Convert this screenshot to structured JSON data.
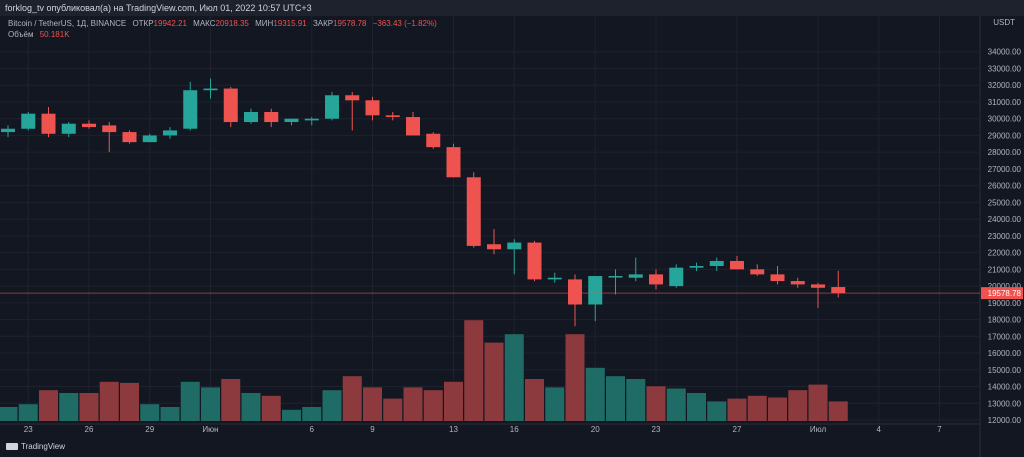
{
  "header": {
    "published": "forklog_tv опубликовал(а) на TradingView.com, Июл 01, 2022 10:57 UTC+3"
  },
  "legend": {
    "symbol": "Bitcoin / TetherUS, 1Д, BINANCE",
    "open_label": "ОТКР",
    "open": "19942.21",
    "high_label": "МАКС",
    "high": "20918.35",
    "low_label": "МИН",
    "low": "19315.91",
    "close_label": "ЗАКР",
    "close": "19578.78",
    "change": "−363.43 (−1.82%)",
    "volume_label": "Объём",
    "volume": "50.181K"
  },
  "price_axis": {
    "currency": "USDT",
    "last_price_label": "19578.78"
  },
  "footer": {
    "brand": "TradingView"
  },
  "colors": {
    "up": "#26a69a",
    "down": "#ef5350",
    "up_volume": "#1f6b66",
    "down_volume": "#8c3a3d",
    "background": "#131722",
    "grid": "#1e222d",
    "last_price_line": "#ef5350"
  },
  "chart_data": {
    "type": "candlestick",
    "title": "Bitcoin / TetherUS, 1Д, BINANCE",
    "ylabel": "USDT",
    "ylim": [
      12000,
      35000
    ],
    "y_ticks": [
      12000,
      13000,
      14000,
      15000,
      16000,
      17000,
      18000,
      19000,
      20000,
      21000,
      22000,
      23000,
      24000,
      25000,
      26000,
      27000,
      28000,
      29000,
      30000,
      31000,
      32000,
      33000,
      34000
    ],
    "x_ticks": [
      {
        "label": "23",
        "index": 1
      },
      {
        "label": "26",
        "index": 4
      },
      {
        "label": "29",
        "index": 7
      },
      {
        "label": "Июн",
        "index": 10
      },
      {
        "label": "6",
        "index": 15
      },
      {
        "label": "9",
        "index": 18
      },
      {
        "label": "13",
        "index": 22
      },
      {
        "label": "16",
        "index": 25
      },
      {
        "label": "20",
        "index": 29
      },
      {
        "label": "23",
        "index": 32
      },
      {
        "label": "27",
        "index": 36
      },
      {
        "label": "Июл",
        "index": 40
      },
      {
        "label": "4",
        "index": 43
      },
      {
        "label": "7",
        "index": 46
      }
    ],
    "candles": [
      {
        "o": 29200,
        "h": 29600,
        "l": 28900,
        "c": 29400,
        "v": 0.25
      },
      {
        "o": 29400,
        "h": 30400,
        "l": 29300,
        "c": 30300,
        "v": 0.3
      },
      {
        "o": 30300,
        "h": 30700,
        "l": 28900,
        "c": 29100,
        "v": 0.55
      },
      {
        "o": 29100,
        "h": 29800,
        "l": 28900,
        "c": 29700,
        "v": 0.5
      },
      {
        "o": 29700,
        "h": 29900,
        "l": 29400,
        "c": 29500,
        "v": 0.5
      },
      {
        "o": 29600,
        "h": 29800,
        "l": 28000,
        "c": 29200,
        "v": 0.7
      },
      {
        "o": 29200,
        "h": 29300,
        "l": 28500,
        "c": 28600,
        "v": 0.68
      },
      {
        "o": 28600,
        "h": 29100,
        "l": 28600,
        "c": 29000,
        "v": 0.3
      },
      {
        "o": 29000,
        "h": 29500,
        "l": 28800,
        "c": 29300,
        "v": 0.25
      },
      {
        "o": 29400,
        "h": 32200,
        "l": 29300,
        "c": 31700,
        "v": 0.7
      },
      {
        "o": 31700,
        "h": 32400,
        "l": 31200,
        "c": 31800,
        "v": 0.6
      },
      {
        "o": 31800,
        "h": 31900,
        "l": 29500,
        "c": 29800,
        "v": 0.75
      },
      {
        "o": 29800,
        "h": 30600,
        "l": 29700,
        "c": 30400,
        "v": 0.5
      },
      {
        "o": 30400,
        "h": 30600,
        "l": 29500,
        "c": 29800,
        "v": 0.45
      },
      {
        "o": 29800,
        "h": 30000,
        "l": 29600,
        "c": 30000,
        "v": 0.2
      },
      {
        "o": 29900,
        "h": 30100,
        "l": 29600,
        "c": 30000,
        "v": 0.25
      },
      {
        "o": 30000,
        "h": 31600,
        "l": 29900,
        "c": 31400,
        "v": 0.55
      },
      {
        "o": 31400,
        "h": 31600,
        "l": 29300,
        "c": 31100,
        "v": 0.8
      },
      {
        "o": 31100,
        "h": 31300,
        "l": 29900,
        "c": 30200,
        "v": 0.6
      },
      {
        "o": 30200,
        "h": 30400,
        "l": 29900,
        "c": 30100,
        "v": 0.4
      },
      {
        "o": 30100,
        "h": 30400,
        "l": 29000,
        "c": 29000,
        "v": 0.6
      },
      {
        "o": 29100,
        "h": 29200,
        "l": 28200,
        "c": 28300,
        "v": 0.55
      },
      {
        "o": 28300,
        "h": 28500,
        "l": 26500,
        "c": 26500,
        "v": 0.7
      },
      {
        "o": 26500,
        "h": 26800,
        "l": 22300,
        "c": 22400,
        "v": 1.8
      },
      {
        "o": 22500,
        "h": 23400,
        "l": 21900,
        "c": 22200,
        "v": 1.4
      },
      {
        "o": 22200,
        "h": 22800,
        "l": 20700,
        "c": 22600,
        "v": 1.55
      },
      {
        "o": 22600,
        "h": 22700,
        "l": 20300,
        "c": 20400,
        "v": 0.75
      },
      {
        "o": 20400,
        "h": 20800,
        "l": 20200,
        "c": 20500,
        "v": 0.6
      },
      {
        "o": 20400,
        "h": 20700,
        "l": 17600,
        "c": 18900,
        "v": 1.55
      },
      {
        "o": 18900,
        "h": 20600,
        "l": 17900,
        "c": 20600,
        "v": 0.95
      },
      {
        "o": 20600,
        "h": 21000,
        "l": 19500,
        "c": 20600,
        "v": 0.8
      },
      {
        "o": 20500,
        "h": 21700,
        "l": 20300,
        "c": 20700,
        "v": 0.75
      },
      {
        "o": 20700,
        "h": 21000,
        "l": 19800,
        "c": 20100,
        "v": 0.62
      },
      {
        "o": 20000,
        "h": 21300,
        "l": 19900,
        "c": 21100,
        "v": 0.58
      },
      {
        "o": 21100,
        "h": 21400,
        "l": 20900,
        "c": 21200,
        "v": 0.5
      },
      {
        "o": 21200,
        "h": 21700,
        "l": 20900,
        "c": 21500,
        "v": 0.35
      },
      {
        "o": 21500,
        "h": 21800,
        "l": 21000,
        "c": 21000,
        "v": 0.4
      },
      {
        "o": 21000,
        "h": 21300,
        "l": 20600,
        "c": 20700,
        "v": 0.45
      },
      {
        "o": 20700,
        "h": 21200,
        "l": 20100,
        "c": 20300,
        "v": 0.42
      },
      {
        "o": 20300,
        "h": 20500,
        "l": 19900,
        "c": 20100,
        "v": 0.55
      },
      {
        "o": 20100,
        "h": 20200,
        "l": 18700,
        "c": 19900,
        "v": 0.65
      },
      {
        "o": 19942.21,
        "h": 20918.35,
        "l": 19315.91,
        "c": 19578.78,
        "v": 0.35
      }
    ]
  }
}
